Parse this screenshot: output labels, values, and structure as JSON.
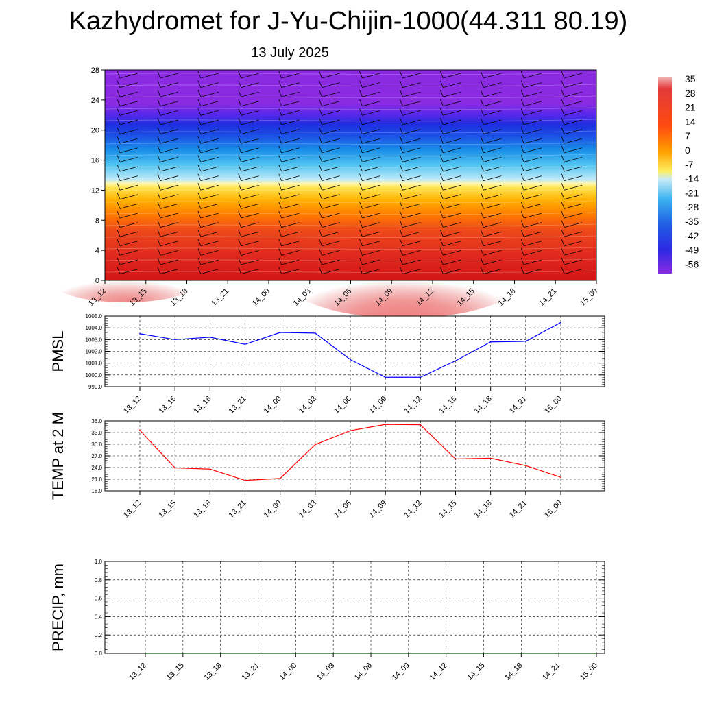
{
  "title": "Kazhydromet for J-Yu-Chijin-1000(44.311 80.19)",
  "subtitle": "13 July 2025",
  "time_labels": [
    "13_12",
    "13_15",
    "13_18",
    "13_21",
    "14_00",
    "14_03",
    "14_06",
    "14_09",
    "14_12",
    "14_15",
    "14_18",
    "14_21",
    "15_00"
  ],
  "colorbar_labels": [
    "35",
    "28",
    "21",
    "14",
    "7",
    "0",
    "-7",
    "-14",
    "-21",
    "-28",
    "-35",
    "-42",
    "-49",
    "-56"
  ],
  "chart_data": [
    {
      "type": "heatmap",
      "name_hint": "cross-section",
      "x": [
        "13_12",
        "13_15",
        "13_18",
        "13_21",
        "14_00",
        "14_03",
        "14_06",
        "14_09",
        "14_12",
        "14_15",
        "14_18",
        "14_21",
        "15_00"
      ],
      "yticks": [
        0,
        4,
        8,
        12,
        16,
        20,
        24,
        28
      ],
      "ylim": [
        0,
        28
      ],
      "colorbar": [
        35,
        28,
        21,
        14,
        7,
        0,
        -7,
        -14,
        -21,
        -28,
        -35,
        -42,
        -49,
        -56
      ],
      "temperature_profile": [
        {
          "y": 0,
          "v": 30
        },
        {
          "y": 4,
          "v": 22
        },
        {
          "y": 8,
          "v": 14
        },
        {
          "y": 10,
          "v": 8
        },
        {
          "y": 12,
          "v": 1
        },
        {
          "y": 13,
          "v": -13
        },
        {
          "y": 16,
          "v": -30
        },
        {
          "y": 19,
          "v": -45
        },
        {
          "y": 21,
          "v": -53
        },
        {
          "y": 23,
          "v": -58
        },
        {
          "y": 28,
          "v": -58
        }
      ],
      "warm_core": {
        "x": "14_09",
        "y": 0,
        "v": 35
      },
      "wind_barbs": true
    },
    {
      "type": "line",
      "ylabel": "PMSL",
      "x": [
        "13_12",
        "13_15",
        "13_18",
        "13_21",
        "14_00",
        "14_03",
        "14_06",
        "14_09",
        "14_12",
        "14_15",
        "14_18",
        "14_21",
        "15_00"
      ],
      "ylim": [
        999.0,
        1005.0
      ],
      "yticks": [
        "999.0",
        "1000.0",
        "1001.0",
        "1002.0",
        "1003.0",
        "1004.0",
        "1005.0"
      ],
      "series": [
        {
          "values": [
            1003.5,
            1003.0,
            1003.2,
            1002.6,
            1003.6,
            1003.55,
            1001.3,
            999.8,
            999.8,
            1001.2,
            1002.8,
            1002.85,
            1004.45
          ],
          "color": "#0000ff"
        }
      ]
    },
    {
      "type": "line",
      "ylabel": "TEMP at 2 M",
      "x": [
        "13_12",
        "13_15",
        "13_18",
        "13_21",
        "14_00",
        "14_03",
        "14_06",
        "14_09",
        "14_12",
        "14_15",
        "14_18",
        "14_21",
        "15_00"
      ],
      "ylim": [
        18.0,
        36.0
      ],
      "yticks": [
        "18.0",
        "21.0",
        "24.0",
        "27.0",
        "30.0",
        "33.0",
        "36.0"
      ],
      "series": [
        {
          "values": [
            33.6,
            23.9,
            23.6,
            20.7,
            21.2,
            29.9,
            33.5,
            35.1,
            35.0,
            26.2,
            26.4,
            24.5,
            21.5
          ],
          "color": "#ff0000"
        }
      ]
    },
    {
      "type": "line",
      "ylabel": "PRECIP, mm",
      "x": [
        "13_12",
        "13_15",
        "13_18",
        "13_21",
        "14_00",
        "14_03",
        "14_06",
        "14_09",
        "14_12",
        "14_15",
        "14_18",
        "14_21",
        "15_00"
      ],
      "ylim": [
        0.0,
        1.0
      ],
      "yticks": [
        "0.0",
        "0.2",
        "0.4",
        "0.6",
        "0.8",
        "1.0"
      ],
      "series": [
        {
          "values": [
            0,
            0,
            0,
            0,
            0,
            0,
            0,
            0,
            0,
            0,
            0,
            0,
            0
          ],
          "color": "#006400"
        }
      ]
    }
  ]
}
